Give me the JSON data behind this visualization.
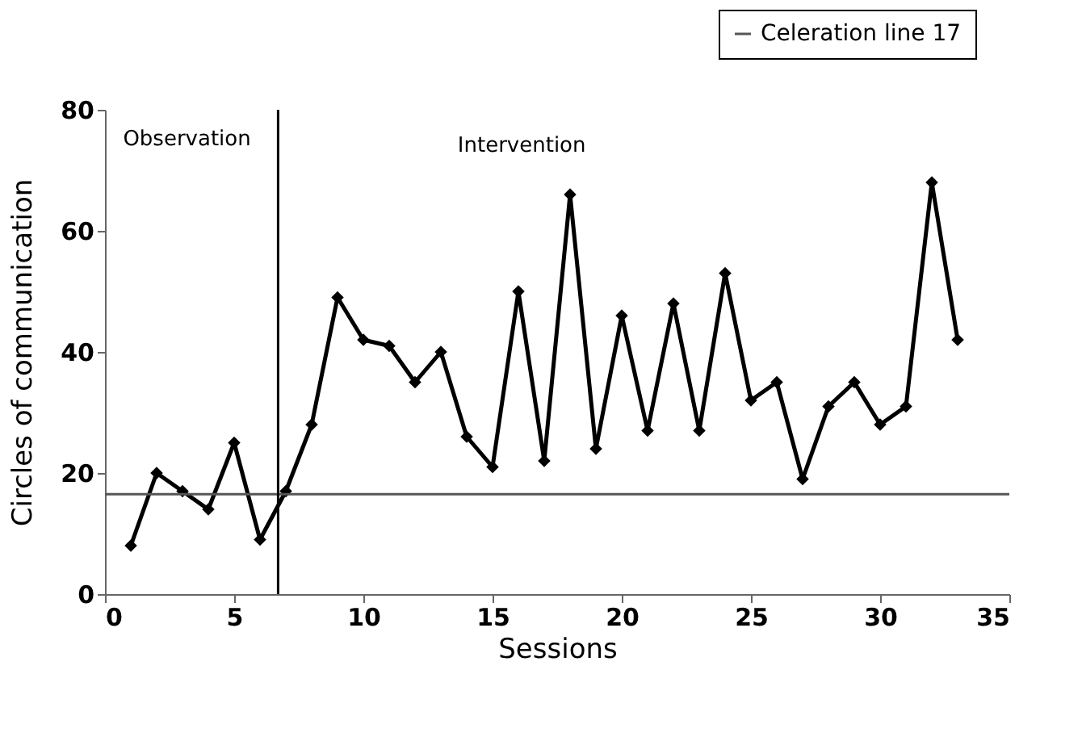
{
  "chart_data": {
    "type": "line",
    "xlabel": "Sessions",
    "ylabel": "Circles of communication",
    "x": [
      1,
      2,
      3,
      4,
      5,
      6,
      7,
      8,
      9,
      10,
      11,
      12,
      13,
      14,
      15,
      16,
      17,
      18,
      19,
      20,
      21,
      22,
      23,
      24,
      25,
      26,
      27,
      28,
      29,
      30,
      31,
      32,
      33
    ],
    "values": [
      8,
      20,
      17,
      14,
      25,
      9,
      17,
      28,
      49,
      42,
      41,
      35,
      40,
      26,
      21,
      50,
      22,
      66,
      24,
      46,
      27,
      48,
      27,
      53,
      32,
      35,
      19,
      31,
      35,
      28,
      31,
      68,
      42
    ],
    "color": "#000000",
    "marker": "diamond",
    "line_style": "solid",
    "xlim": [
      0,
      35
    ],
    "xticks": [
      0,
      5,
      10,
      15,
      20,
      25,
      30,
      35
    ],
    "ylim": [
      0,
      80
    ],
    "yticks": [
      0,
      20,
      40,
      60,
      80
    ],
    "ref_lines": [
      {
        "axis": "y",
        "value": 16.5,
        "label": "Celeration line 17",
        "color": "#555555"
      },
      {
        "axis": "x",
        "value": 6.7,
        "color": "#000000"
      }
    ],
    "annotations": [
      "Observation",
      "Intervention"
    ],
    "grid": false,
    "legend": "top right"
  }
}
